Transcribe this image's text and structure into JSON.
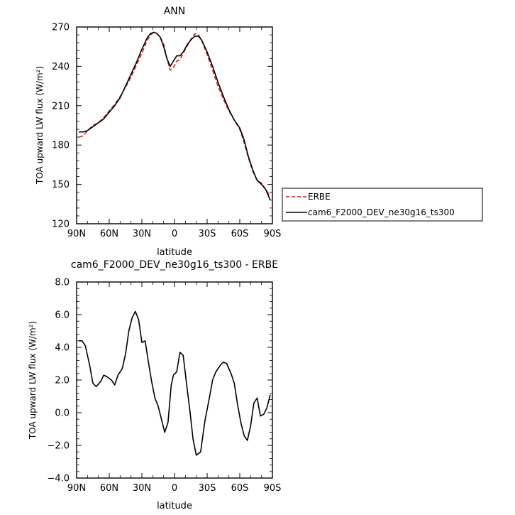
{
  "chart_data": [
    {
      "type": "line",
      "title": "ANN",
      "xlabel": "latitude",
      "ylabel": "TOA upward LW flux (W/m²)",
      "xlim": [
        90,
        -90
      ],
      "ylim": [
        120,
        270
      ],
      "xticks": [
        90,
        60,
        30,
        0,
        -30,
        -60,
        -90
      ],
      "xtick_labels": [
        "90N",
        "60N",
        "30N",
        "0",
        "30S",
        "60S",
        "90S"
      ],
      "yticks": [
        120,
        150,
        180,
        210,
        240,
        270
      ],
      "ytick_labels": [
        "120",
        "150",
        "180",
        "210",
        "240",
        "270"
      ],
      "grid": false,
      "legend_position": "right",
      "series": [
        {
          "name": "ERBE",
          "color": "#d41c1c",
          "dash": "dashed",
          "x": [
            88,
            84,
            80,
            75,
            70,
            65,
            60,
            55,
            50,
            45,
            40,
            35,
            30,
            25,
            22,
            19,
            16,
            13,
            10,
            7,
            4,
            1,
            -2,
            -5,
            -8,
            -12,
            -16,
            -19,
            -22,
            -25,
            -30,
            -35,
            -40,
            -45,
            -50,
            -55,
            -60,
            -64,
            -68,
            -72,
            -76,
            -80,
            -84,
            -88
          ],
          "y": [
            186,
            187,
            191,
            195,
            197,
            201,
            206,
            211,
            217,
            224,
            232,
            241,
            250,
            260,
            264,
            266,
            265,
            262,
            257,
            246,
            237,
            239,
            244,
            245,
            250,
            256,
            262,
            265,
            264,
            260,
            249,
            237,
            225,
            215,
            206,
            199,
            192,
            182,
            170,
            160,
            153,
            151,
            146,
            141
          ]
        },
        {
          "name": "cam6_F2000_DEV_ne30g16_ts300",
          "color": "#000000",
          "dash": "solid",
          "x": [
            88,
            84,
            80,
            75,
            70,
            65,
            60,
            55,
            50,
            45,
            40,
            35,
            30,
            25,
            22,
            19,
            16,
            13,
            10,
            7,
            4,
            1,
            -2,
            -5,
            -8,
            -12,
            -16,
            -19,
            -22,
            -25,
            -30,
            -35,
            -40,
            -45,
            -50,
            -55,
            -60,
            -64,
            -68,
            -72,
            -76,
            -80,
            -84,
            -88
          ],
          "y": [
            190,
            190,
            191,
            194,
            197,
            200,
            205,
            210,
            216,
            225,
            234,
            243,
            253,
            262,
            265,
            266,
            265,
            262,
            255,
            246,
            240,
            244,
            248,
            248,
            251,
            257,
            261,
            263,
            263,
            260,
            251,
            240,
            228,
            217,
            207,
            199,
            193,
            184,
            171,
            161,
            153,
            150,
            146,
            138
          ]
        }
      ]
    },
    {
      "type": "line",
      "title": "cam6_F2000_DEV_ne30g16_ts300 - ERBE",
      "xlabel": "latitude",
      "ylabel": "TOA upward LW flux (W/m²)",
      "xlim": [
        90,
        -90
      ],
      "ylim": [
        -4.0,
        8.0
      ],
      "xticks": [
        90,
        60,
        30,
        0,
        -30,
        -60,
        -90
      ],
      "xtick_labels": [
        "90N",
        "60N",
        "30N",
        "0",
        "30S",
        "60S",
        "90S"
      ],
      "yticks": [
        -4,
        -2,
        0,
        2,
        4,
        6,
        8
      ],
      "ytick_labels": [
        "−4.0",
        "−2.0",
        "0.0",
        "2.0",
        "4.0",
        "6.0",
        "8.0"
      ],
      "grid": false,
      "series": [
        {
          "color": "#000000",
          "dash": "solid",
          "x": [
            88,
            85,
            82,
            78,
            75,
            72,
            68,
            65,
            62,
            58,
            55,
            52,
            48,
            45,
            42,
            39,
            36,
            33,
            30,
            27,
            24,
            21,
            18,
            15,
            12,
            9,
            6,
            3,
            1,
            -2,
            -5,
            -8,
            -11,
            -14,
            -17,
            -20,
            -24,
            -28,
            -32,
            -35,
            -38,
            -42,
            -45,
            -48,
            -52,
            -55,
            -58,
            -61,
            -64,
            -67,
            -70,
            -73,
            -76,
            -79,
            -82,
            -85,
            -88
          ],
          "y": [
            4.4,
            4.4,
            4.1,
            2.9,
            1.8,
            1.6,
            1.9,
            2.3,
            2.2,
            2.0,
            1.7,
            2.3,
            2.7,
            3.6,
            5.0,
            5.8,
            6.2,
            5.7,
            4.3,
            4.4,
            3.1,
            1.9,
            0.9,
            0.4,
            -0.4,
            -1.2,
            -0.6,
            1.7,
            2.3,
            2.5,
            3.7,
            3.5,
            1.8,
            0.2,
            -1.6,
            -2.6,
            -2.4,
            -0.5,
            0.9,
            2.0,
            2.5,
            2.9,
            3.1,
            3.0,
            2.4,
            1.8,
            0.5,
            -0.6,
            -1.4,
            -1.7,
            -0.8,
            0.6,
            0.9,
            -0.2,
            -0.1,
            0.3,
            1.1
          ]
        }
      ]
    }
  ]
}
